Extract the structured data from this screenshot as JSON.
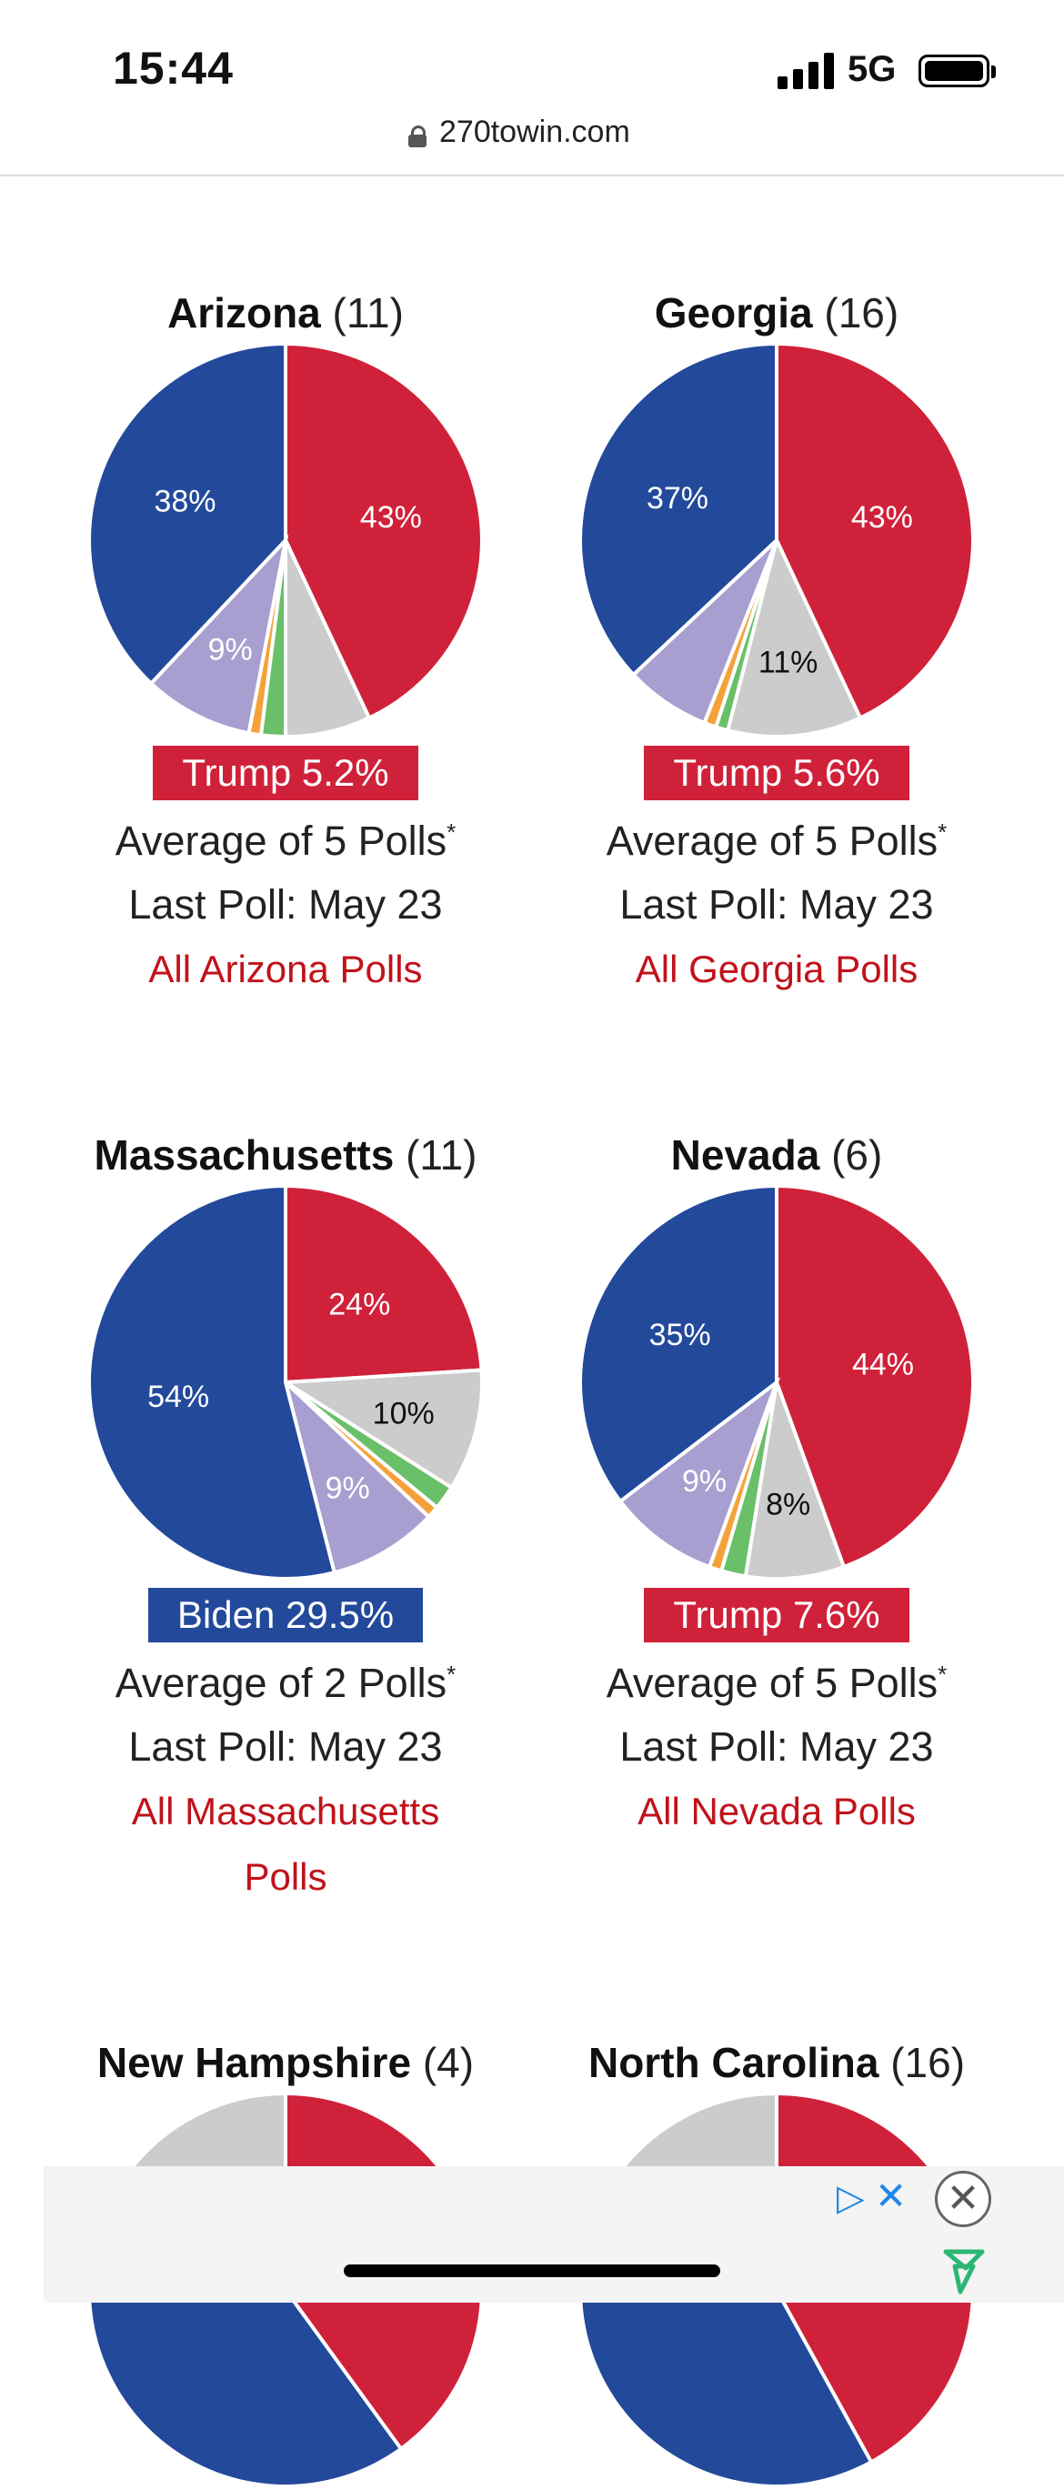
{
  "status_bar": {
    "time": "15:44",
    "network": "5G"
  },
  "browser": {
    "url": "270towin.com"
  },
  "colors": {
    "republican": "#d0213a",
    "democrat": "#23499b",
    "undecided": "#cccccc",
    "other": "#a89fd0",
    "libertarian": "#f5a13a",
    "green": "#6abf69",
    "link": "#c1121a"
  },
  "states": [
    {
      "name": "Arizona",
      "ev": "(11)",
      "leader": "Trump 5.2%",
      "leader_party": "rep",
      "average": "Average of 5 Polls",
      "asterisk": "*",
      "last_poll": "Last Poll: May 23",
      "link": "All Arizona Polls",
      "chart_data": {
        "type": "pie",
        "slices": [
          {
            "name": "Trump",
            "value": 43,
            "label": "43%"
          },
          {
            "name": "Undecided",
            "value": 7,
            "label": ""
          },
          {
            "name": "Green",
            "value": 2,
            "label": ""
          },
          {
            "name": "Libertarian",
            "value": 1,
            "label": ""
          },
          {
            "name": "Other",
            "value": 9,
            "label": "9%"
          },
          {
            "name": "Biden",
            "value": 38,
            "label": "38%"
          }
        ]
      }
    },
    {
      "name": "Georgia",
      "ev": "(16)",
      "leader": "Trump 5.6%",
      "leader_party": "rep",
      "average": "Average of 5 Polls",
      "asterisk": "*",
      "last_poll": "Last Poll: May 23",
      "link": "All Georgia Polls",
      "chart_data": {
        "type": "pie",
        "slices": [
          {
            "name": "Trump",
            "value": 43,
            "label": "43%"
          },
          {
            "name": "Undecided",
            "value": 11,
            "label": "11%"
          },
          {
            "name": "Green",
            "value": 1,
            "label": ""
          },
          {
            "name": "Libertarian",
            "value": 1,
            "label": ""
          },
          {
            "name": "Other",
            "value": 7,
            "label": ""
          },
          {
            "name": "Biden",
            "value": 37,
            "label": "37%"
          }
        ]
      }
    },
    {
      "name": "Massachusetts",
      "ev": "(11)",
      "leader": "Biden 29.5%",
      "leader_party": "dem",
      "average": "Average of 2 Polls",
      "asterisk": "*",
      "last_poll": "Last Poll: May 23",
      "link": "All Massachusetts Polls",
      "chart_data": {
        "type": "pie",
        "slices": [
          {
            "name": "Trump",
            "value": 24,
            "label": "24%"
          },
          {
            "name": "Undecided",
            "value": 10,
            "label": "10%"
          },
          {
            "name": "Green",
            "value": 2,
            "label": ""
          },
          {
            "name": "Libertarian",
            "value": 1,
            "label": ""
          },
          {
            "name": "Other",
            "value": 9,
            "label": "9%"
          },
          {
            "name": "Biden",
            "value": 54,
            "label": "54%"
          }
        ]
      }
    },
    {
      "name": "Nevada",
      "ev": "(6)",
      "leader": "Trump 7.6%",
      "leader_party": "rep",
      "average": "Average of 5 Polls",
      "asterisk": "*",
      "last_poll": "Last Poll: May 23",
      "link": "All Nevada Polls",
      "chart_data": {
        "type": "pie",
        "slices": [
          {
            "name": "Trump",
            "value": 44,
            "label": "44%"
          },
          {
            "name": "Undecided",
            "value": 8,
            "label": "8%"
          },
          {
            "name": "Green",
            "value": 2,
            "label": ""
          },
          {
            "name": "Libertarian",
            "value": 1,
            "label": ""
          },
          {
            "name": "Other",
            "value": 9,
            "label": "9%"
          },
          {
            "name": "Biden",
            "value": 35,
            "label": "35%"
          }
        ]
      }
    },
    {
      "name": "New Hampshire",
      "ev": "(4)",
      "chart_data": {
        "type": "pie",
        "slices": [
          {
            "name": "Trump",
            "value": 40,
            "label": ""
          },
          {
            "name": "Biden",
            "value": 45,
            "label": ""
          },
          {
            "name": "Undecided",
            "value": 15,
            "label": ""
          }
        ]
      }
    },
    {
      "name": "North Carolina",
      "ev": "(16)",
      "chart_data": {
        "type": "pie",
        "slices": [
          {
            "name": "Trump",
            "value": 42,
            "label": ""
          },
          {
            "name": "Biden",
            "value": 42,
            "label": ""
          },
          {
            "name": "Undecided",
            "value": 16,
            "label": ""
          }
        ]
      }
    }
  ]
}
